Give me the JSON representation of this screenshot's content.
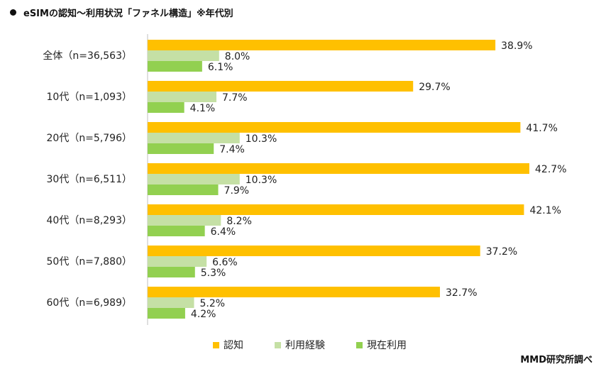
{
  "title": "eSIMの認知～利用状況「ファネル構造」※年代別",
  "source": "MMD研究所調べ",
  "colors": {
    "awareness": "#FFC000",
    "usage_experience": "#C5E0A5",
    "current_use": "#92D050"
  },
  "chart_data": {
    "type": "bar",
    "orientation": "horizontal",
    "title": "eSIMの認知～利用状況「ファネル構造」※年代別",
    "categories": [
      "全体（n=36,563）",
      "10代（n=1,093）",
      "20代（n=5,796）",
      "30代（n=6,511）",
      "40代（n=8,293）",
      "50代（n=7,880）",
      "60代（n=6,989）"
    ],
    "series": [
      {
        "name": "認知",
        "values": [
          38.9,
          29.7,
          41.7,
          42.7,
          42.1,
          37.2,
          32.7
        ]
      },
      {
        "name": "利用経験",
        "values": [
          8.0,
          7.7,
          10.3,
          10.3,
          8.2,
          6.6,
          5.2
        ]
      },
      {
        "name": "現在利用",
        "values": [
          6.1,
          4.1,
          7.4,
          7.9,
          6.4,
          5.3,
          4.2
        ]
      }
    ],
    "value_format": "percent_1dp",
    "legend_position": "bottom",
    "grid": false
  }
}
